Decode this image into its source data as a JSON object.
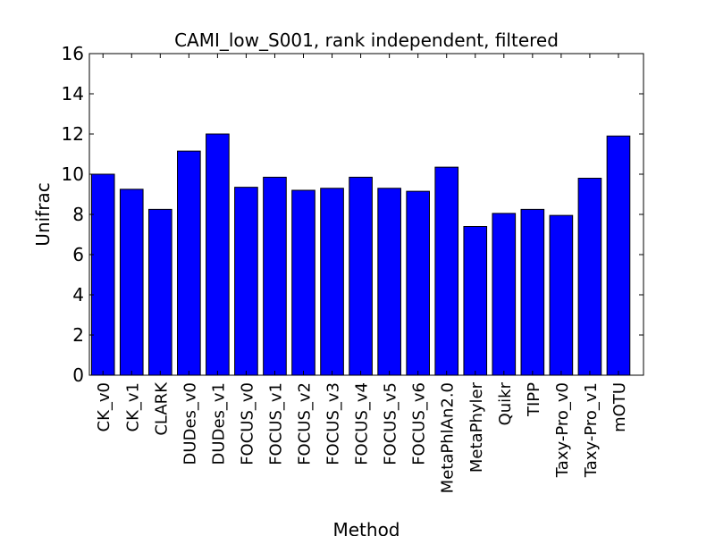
{
  "chart_data": {
    "type": "bar",
    "title": "CAMI_low_S001, rank independent, filtered",
    "xlabel": "Method",
    "ylabel": "Unifrac",
    "ylim": [
      0,
      16
    ],
    "yticks": [
      0,
      2,
      4,
      6,
      8,
      10,
      12,
      14,
      16
    ],
    "grid": false,
    "bar_color": "#0000ff",
    "categories": [
      "CK_v0",
      "CK_v1",
      "CLARK",
      "DUDes_v0",
      "DUDes_v1",
      "FOCUS_v0",
      "FOCUS_v1",
      "FOCUS_v2",
      "FOCUS_v3",
      "FOCUS_v4",
      "FOCUS_v5",
      "FOCUS_v6",
      "MetaPhlAn2.0",
      "MetaPhyler",
      "Quikr",
      "TIPP",
      "Taxy-Pro_v0",
      "Taxy-Pro_v1",
      "mOTU"
    ],
    "values": [
      10.0,
      9.25,
      8.25,
      11.15,
      12.0,
      9.35,
      9.85,
      9.2,
      9.3,
      9.85,
      9.3,
      9.15,
      10.35,
      7.4,
      8.05,
      8.25,
      7.95,
      9.8,
      11.9
    ]
  }
}
